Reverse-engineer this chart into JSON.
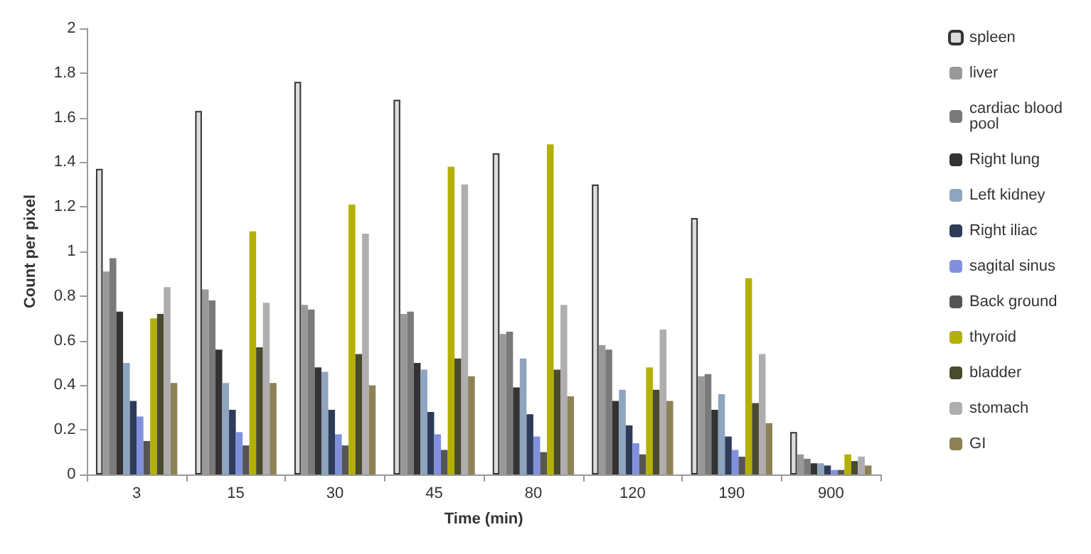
{
  "chart_data": {
    "type": "bar",
    "xlabel": "Time (min)",
    "ylabel": "Count per pixel",
    "categories": [
      "3",
      "15",
      "30",
      "45",
      "80",
      "120",
      "190",
      "900"
    ],
    "ylim": [
      0,
      2
    ],
    "yticks": [
      0,
      0.2,
      0.4,
      0.6,
      0.8,
      1,
      1.2,
      1.4,
      1.6,
      1.8,
      2
    ],
    "grid": false,
    "legend": "right",
    "series": [
      {
        "name": "spleen",
        "color": "#dcdcdc",
        "values": [
          1.37,
          1.63,
          1.76,
          1.68,
          1.44,
          1.3,
          1.15,
          0.19
        ]
      },
      {
        "name": "liver",
        "color": "#999999",
        "values": [
          0.91,
          0.83,
          0.76,
          0.72,
          0.63,
          0.58,
          0.44,
          0.09
        ]
      },
      {
        "name": "cardiac blood pool",
        "color": "#7a7a7a",
        "values": [
          0.97,
          0.78,
          0.74,
          0.73,
          0.64,
          0.56,
          0.45,
          0.07
        ]
      },
      {
        "name": "Right lung",
        "color": "#333333",
        "values": [
          0.73,
          0.56,
          0.48,
          0.5,
          0.39,
          0.33,
          0.29,
          0.05
        ]
      },
      {
        "name": "Left kidney",
        "color": "#8ea4bf",
        "values": [
          0.5,
          0.41,
          0.46,
          0.47,
          0.52,
          0.38,
          0.36,
          0.05
        ]
      },
      {
        "name": "Right iliac",
        "color": "#2e3c5a",
        "values": [
          0.33,
          0.29,
          0.29,
          0.28,
          0.27,
          0.22,
          0.17,
          0.04
        ]
      },
      {
        "name": "sagital sinus",
        "color": "#8090dc",
        "values": [
          0.26,
          0.19,
          0.18,
          0.18,
          0.17,
          0.14,
          0.11,
          0.02
        ]
      },
      {
        "name": "Back ground",
        "color": "#555555",
        "values": [
          0.15,
          0.13,
          0.13,
          0.11,
          0.1,
          0.09,
          0.08,
          0.02
        ]
      },
      {
        "name": "thyroid",
        "color": "#b4b000",
        "values": [
          0.7,
          1.09,
          1.21,
          1.38,
          1.48,
          0.48,
          0.88,
          0.09
        ]
      },
      {
        "name": "bladder",
        "color": "#4a4a30",
        "values": [
          0.72,
          0.57,
          0.54,
          0.52,
          0.47,
          0.38,
          0.32,
          0.06
        ]
      },
      {
        "name": "stomach",
        "color": "#b0adb0",
        "values": [
          0.84,
          0.77,
          1.08,
          1.3,
          0.76,
          0.65,
          0.54,
          0.08
        ]
      },
      {
        "name": "GI",
        "color": "#8c8256",
        "values": [
          0.41,
          0.41,
          0.4,
          0.44,
          0.35,
          0.33,
          0.23,
          0.04
        ]
      }
    ]
  }
}
